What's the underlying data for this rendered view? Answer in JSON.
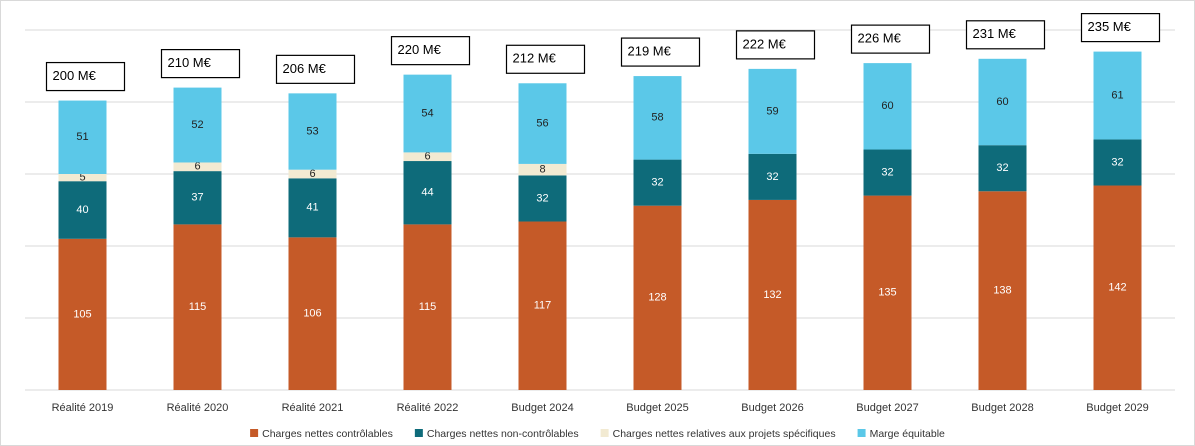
{
  "chart_data": {
    "type": "stacked_bar",
    "categories": [
      "Réalité 2019",
      "Réalité 2020",
      "Réalité 2021",
      "Réalité 2022",
      "Budget 2024",
      "Budget 2025",
      "Budget 2026",
      "Budget 2027",
      "Budget 2028",
      "Budget 2029"
    ],
    "series": [
      {
        "name": "Charges nettes contrôlables",
        "color": "#c55a28",
        "values": [
          105,
          115,
          106,
          115,
          117,
          128,
          132,
          135,
          138,
          142
        ]
      },
      {
        "name": "Charges nettes non-contrôlables",
        "color": "#0e6b7a",
        "values": [
          40,
          37,
          41,
          44,
          32,
          32,
          32,
          32,
          32,
          32
        ]
      },
      {
        "name": "Charges nettes relatives aux projets spécifiques",
        "color": "#f2ead2",
        "values": [
          5,
          6,
          6,
          6,
          8,
          null,
          null,
          null,
          null,
          null
        ]
      },
      {
        "name": "Marge équitable",
        "color": "#5bc8e8",
        "values": [
          51,
          52,
          53,
          54,
          56,
          58,
          59,
          60,
          60,
          61
        ]
      }
    ],
    "annotations": [
      "200 M€",
      "210 M€",
      "206 M€",
      "220 M€",
      "212 M€",
      "219 M€",
      "222 M€",
      "226 M€",
      "231 M€",
      "235 M€"
    ],
    "ylim": [
      0,
      250
    ],
    "yticks": [
      0,
      50,
      100,
      150,
      200,
      250
    ],
    "grid": true,
    "legend": "bottom"
  }
}
